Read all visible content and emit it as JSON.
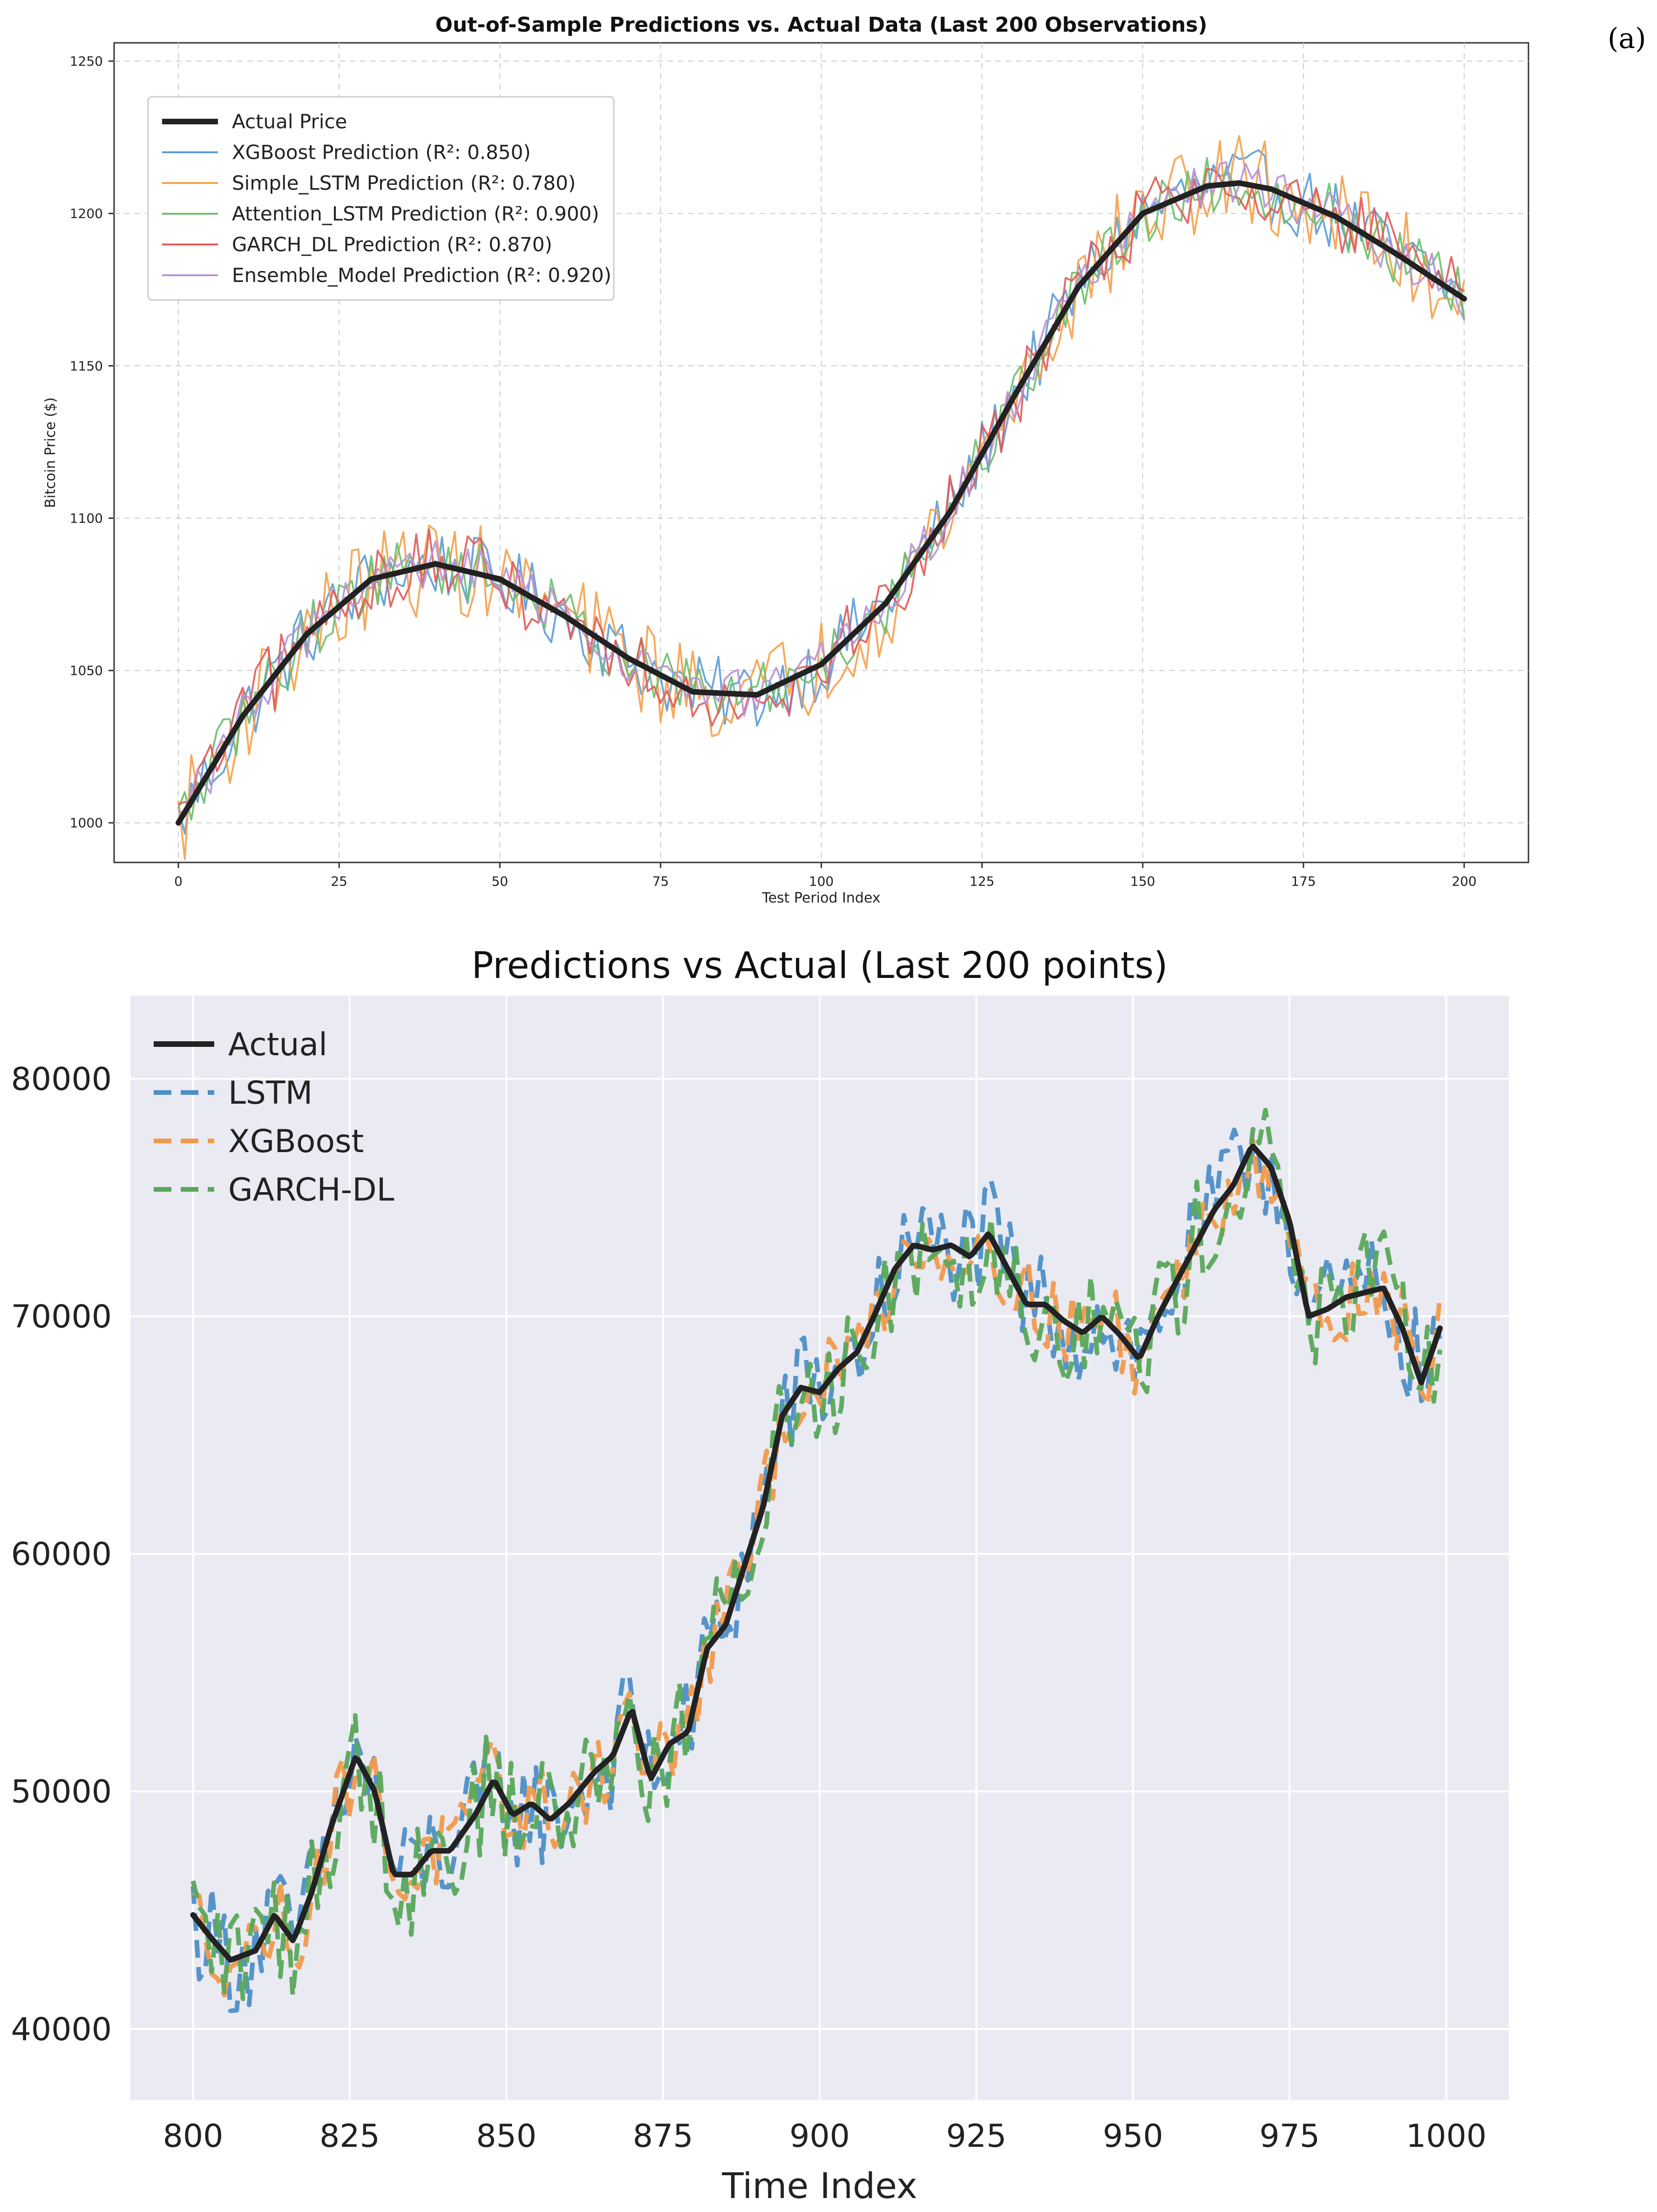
{
  "panel_label": "(a)",
  "chart_data": [
    {
      "type": "line",
      "title": "Out-of-Sample Predictions vs. Actual Data (Last 200 Observations)",
      "xlabel": "Test Period Index",
      "ylabel": "Bitcoin Price ($)",
      "xlim": [
        -10,
        210
      ],
      "ylim": [
        987,
        1256
      ],
      "xticks": [
        0,
        25,
        50,
        75,
        100,
        125,
        150,
        175,
        200
      ],
      "yticks": [
        1000,
        1050,
        1100,
        1150,
        1200,
        1250
      ],
      "grid": true,
      "legend_position": "upper-left",
      "actual": {
        "name": "Actual Price",
        "color": "#222222",
        "x": [
          0,
          10,
          20,
          30,
          40,
          50,
          60,
          70,
          80,
          90,
          100,
          110,
          120,
          130,
          140,
          150,
          160,
          165,
          170,
          180,
          190,
          200
        ],
        "values": [
          1000,
          1035,
          1062,
          1080,
          1085,
          1080,
          1068,
          1054,
          1043,
          1042,
          1052,
          1072,
          1102,
          1140,
          1176,
          1200,
          1209,
          1210,
          1208,
          1199,
          1186,
          1172
        ]
      },
      "series": [
        {
          "name": "XGBoost Prediction (R²: 0.850)",
          "color": "#5b9bd5",
          "noise_amplitude": 12
        },
        {
          "name": "Simple_LSTM Prediction (R²: 0.780)",
          "color": "#f5a04a",
          "noise_amplitude": 16
        },
        {
          "name": "Attention_LSTM Prediction (R²: 0.900)",
          "color": "#6cbf6c",
          "noise_amplitude": 10
        },
        {
          "name": "GARCH_DL Prediction (R²: 0.870)",
          "color": "#e05a5a",
          "noise_amplitude": 12
        },
        {
          "name": "Ensemble_Model Prediction (R²: 0.920)",
          "color": "#b792d6",
          "noise_amplitude": 8
        }
      ]
    },
    {
      "type": "line",
      "title": "Predictions vs Actual (Last 200 points)",
      "xlabel": "Time Index",
      "ylabel": "",
      "xlim": [
        790,
        1010
      ],
      "ylim": [
        37000,
        83500
      ],
      "xticks": [
        800,
        825,
        850,
        875,
        900,
        925,
        950,
        975,
        1000
      ],
      "yticks": [
        40000,
        50000,
        60000,
        70000,
        80000
      ],
      "grid": true,
      "legend_position": "upper-left",
      "actual": {
        "name": "Actual",
        "color": "#222222",
        "x": [
          800,
          803,
          806,
          810,
          813,
          816,
          819,
          822,
          826,
          829,
          832,
          835,
          838,
          841,
          845,
          848,
          851,
          854,
          857,
          860,
          864,
          867,
          870,
          873,
          876,
          879,
          882,
          885,
          888,
          891,
          894,
          897,
          900,
          903,
          906,
          909,
          912,
          915,
          918,
          921,
          924,
          927,
          930,
          933,
          936,
          939,
          942,
          945,
          948,
          951,
          954,
          957,
          960,
          963,
          966,
          969,
          972,
          975,
          978,
          981,
          984,
          987,
          990,
          993,
          996,
          999
        ],
        "values": [
          44800,
          43800,
          42900,
          43300,
          44800,
          43700,
          45800,
          48500,
          51500,
          50000,
          46500,
          46500,
          47500,
          47500,
          49000,
          50500,
          49000,
          49500,
          48800,
          49500,
          50800,
          51500,
          53500,
          50500,
          52000,
          52500,
          56000,
          57000,
          59500,
          62000,
          65800,
          67000,
          66800,
          67800,
          68500,
          70200,
          72000,
          73000,
          72800,
          73000,
          72500,
          73500,
          72000,
          70500,
          70500,
          69800,
          69300,
          70000,
          69200,
          68200,
          70000,
          71500,
          73000,
          74500,
          75500,
          77200,
          76300,
          74000,
          70000,
          70300,
          70800,
          71000,
          71200,
          69500,
          67200,
          69500
        ]
      },
      "series": [
        {
          "name": "LSTM",
          "color": "#4d8fc7",
          "dash": "dashed",
          "noise_amplitude": 2400
        },
        {
          "name": "XGBoost",
          "color": "#f19a4c",
          "dash": "dashed",
          "noise_amplitude": 1800
        },
        {
          "name": "GARCH-DL",
          "color": "#59a85a",
          "dash": "dashed",
          "noise_amplitude": 2600
        }
      ]
    }
  ]
}
